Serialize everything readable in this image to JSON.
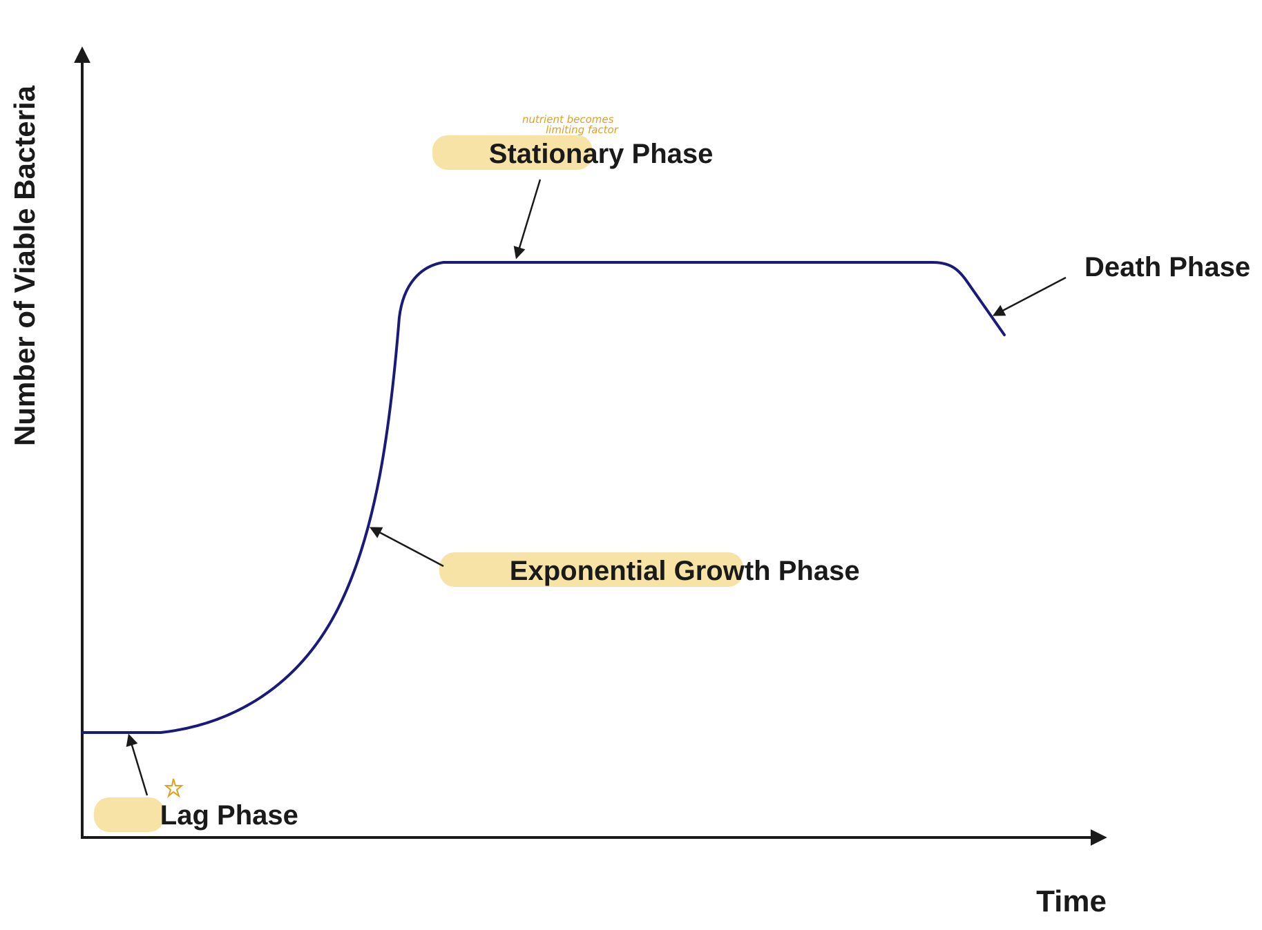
{
  "axes": {
    "y_label": "Number of Viable Bacteria",
    "x_label": "Time"
  },
  "phases": {
    "lag": {
      "highlighted": "Lag",
      "rest": " Phase"
    },
    "exponential": {
      "highlighted": "Exponential Growth",
      "rest": " Phase"
    },
    "stationary": {
      "highlighted": "Stationary",
      "rest": " Phase"
    },
    "death": {
      "text": "Death Phase"
    }
  },
  "annotations": {
    "handwritten_line1": "nutrient becomes",
    "handwritten_line2": "limiting factor"
  },
  "colors": {
    "curve": "#1a1a7a",
    "highlight": "#f7e3a6",
    "handwriting": "#e0a020",
    "axis": "#1a1a1a"
  }
}
